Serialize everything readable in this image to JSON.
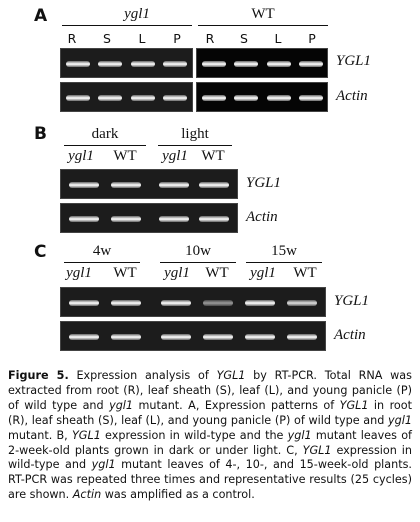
{
  "panel_a": {
    "letter": "A",
    "groups": [
      "ygl1",
      "WT"
    ],
    "lanes": [
      "R",
      "S",
      "L",
      "P",
      "R",
      "S",
      "L",
      "P"
    ],
    "rows": [
      "YGL1",
      "Actin"
    ]
  },
  "panel_b": {
    "letter": "B",
    "conditions": [
      "dark",
      "light"
    ],
    "lanes": [
      "ygl1",
      "WT",
      "ygl1",
      "WT"
    ],
    "rows": [
      "YGL1",
      "Actin"
    ]
  },
  "panel_c": {
    "letter": "C",
    "ages": [
      "4w",
      "10w",
      "15w"
    ],
    "lanes": [
      "ygl1",
      "WT",
      "ygl1",
      "WT",
      "ygl1",
      "WT"
    ],
    "rows": [
      "YGL1",
      "Actin"
    ]
  },
  "caption": {
    "label": "Figure 5.",
    "s1": " Expression analysis of ",
    "g1": "YGL1",
    "s2": " by RT-PCR. Total RNA was extracted from root (R), leaf sheath (S), leaf (L), and young panicle (P) of wild type and ",
    "g2": "ygl1",
    "s3": " mutant. A, Expression patterns of ",
    "g3": "YGL1",
    "s4": " in root (R), leaf sheath (S), leaf (L), and young panicle (P) of wild type and ",
    "g4": "ygl1",
    "s5": " mutant. B, ",
    "g5": "YGL1",
    "s6": " expression in wild-type and the ",
    "g6": "ygl1",
    "s7": " mutant leaves of 2-week-old plants grown in dark or under light. C, ",
    "g7": "YGL1",
    "s8": " expression in wild-type and ",
    "g8": "ygl1",
    "s9": " mutant leaves of 4-, 10-, and 15-week-old plants. RT-PCR was repeated three times and representative results (25 cycles) are shown. ",
    "g9": "Actin",
    "s10": " was amplified as a control."
  }
}
